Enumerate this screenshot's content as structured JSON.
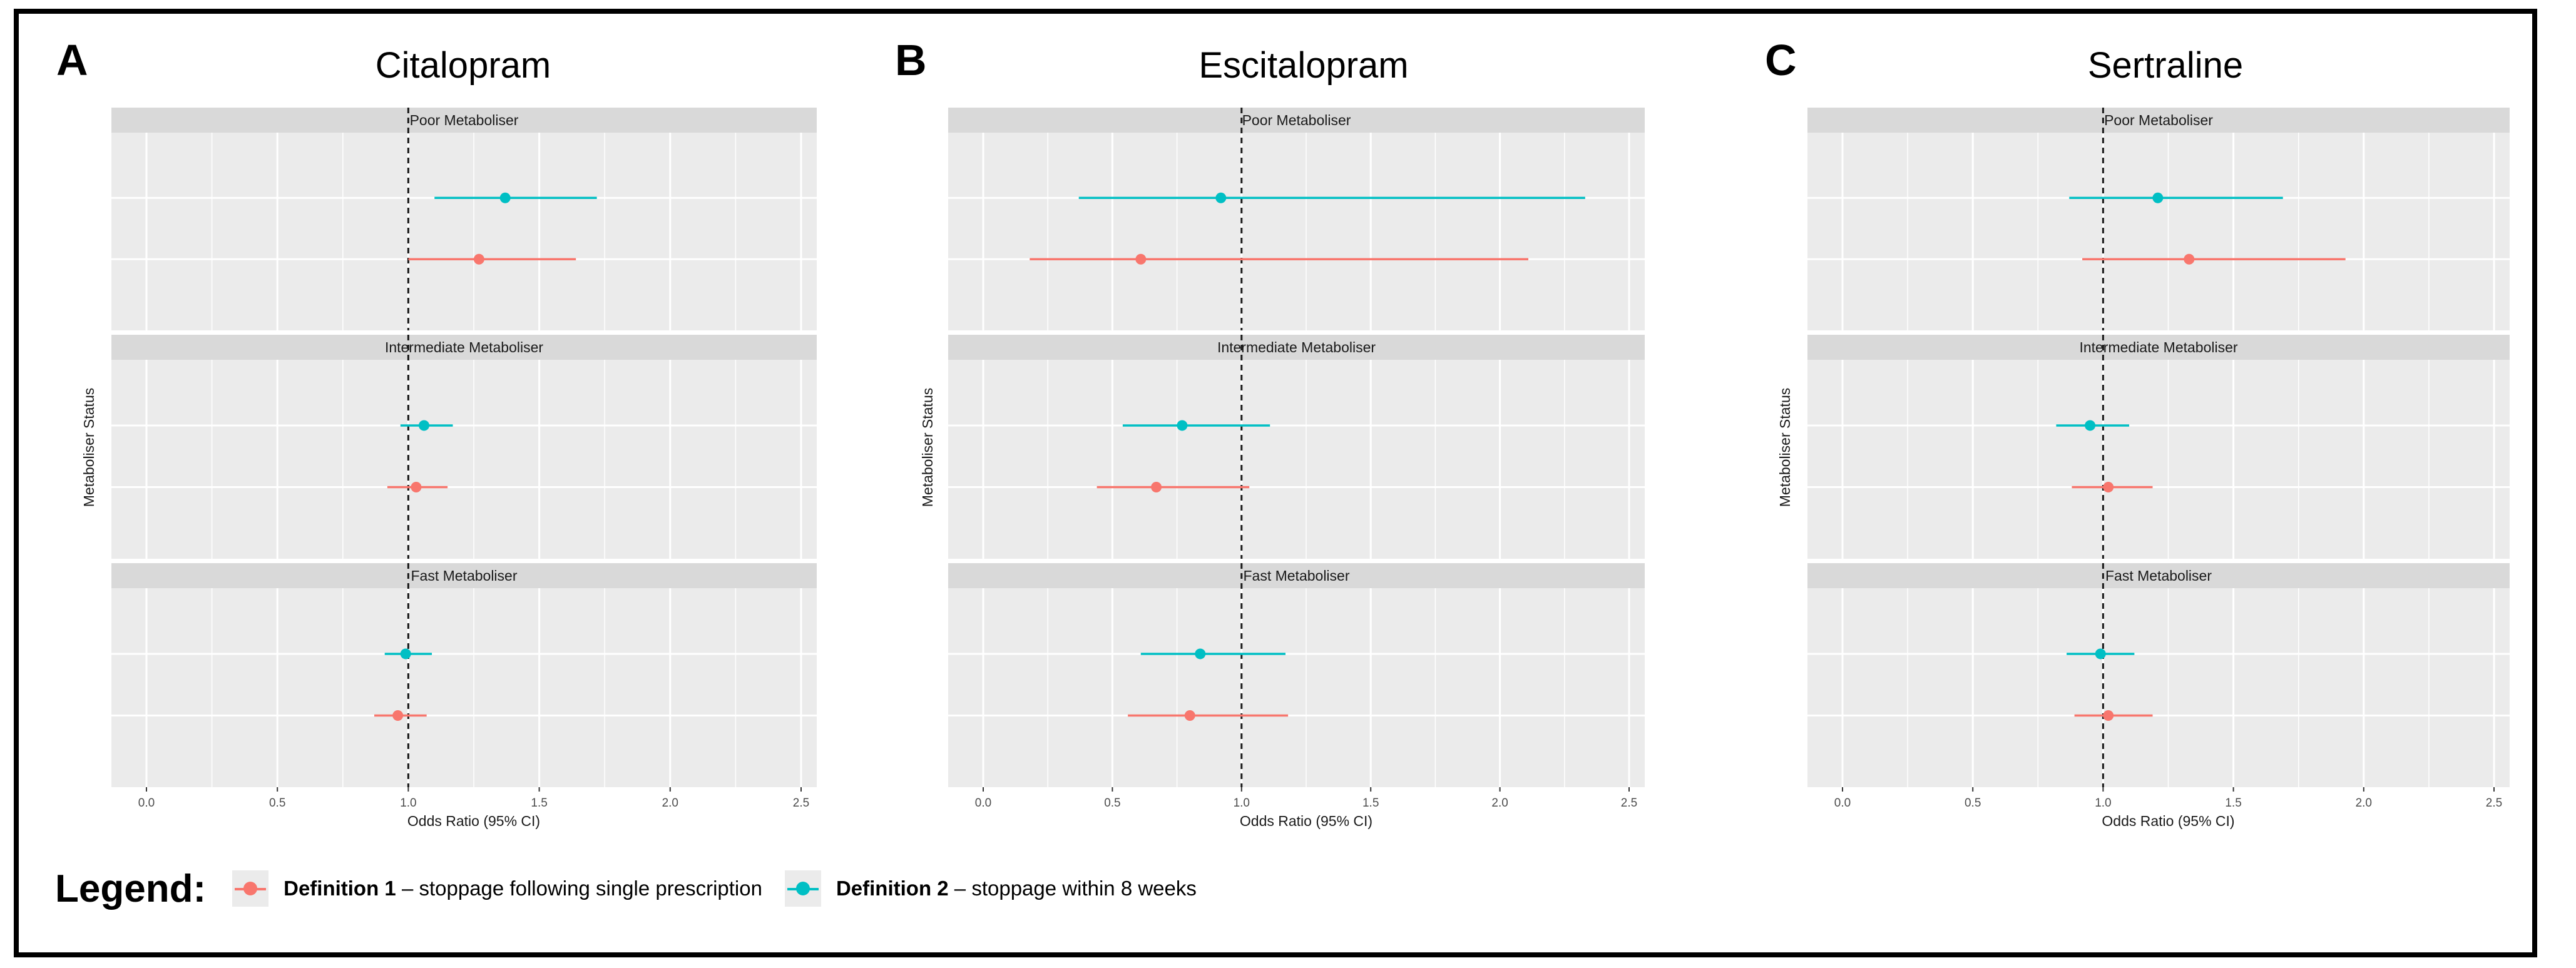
{
  "figure": {
    "legend_title": "Legend:",
    "legend_items": [
      {
        "bold": "Definition 1",
        "rest": " – stoppage following single prescription",
        "color": "#F8766D"
      },
      {
        "bold": "Definition 2",
        "rest": " – stoppage within 8 weeks",
        "color": "#00BFC4"
      }
    ]
  },
  "chart_data": [
    {
      "type": "scatter",
      "letter": "A",
      "title": "Citalopram",
      "xlabel": "Odds Ratio (95% CI)",
      "ylabel": "Metaboliser Status",
      "xlim": [
        0,
        2.5
      ],
      "xticks": [
        "0.0",
        "0.5",
        "1.0",
        "1.5",
        "2.0",
        "2.5"
      ],
      "reference_line": 1.0,
      "facets": [
        {
          "label": "Poor Metaboliser",
          "points": [
            {
              "series": "Definition 2",
              "or": 1.37,
              "lo": 1.1,
              "hi": 1.72
            },
            {
              "series": "Definition 1",
              "or": 1.27,
              "lo": 1.0,
              "hi": 1.64
            }
          ]
        },
        {
          "label": "Intermediate Metaboliser",
          "points": [
            {
              "series": "Definition 2",
              "or": 1.06,
              "lo": 0.97,
              "hi": 1.17
            },
            {
              "series": "Definition 1",
              "or": 1.03,
              "lo": 0.92,
              "hi": 1.15
            }
          ]
        },
        {
          "label": "Fast Metaboliser",
          "points": [
            {
              "series": "Definition 2",
              "or": 0.99,
              "lo": 0.91,
              "hi": 1.09
            },
            {
              "series": "Definition 1",
              "or": 0.96,
              "lo": 0.87,
              "hi": 1.07
            }
          ]
        }
      ]
    },
    {
      "type": "scatter",
      "letter": "B",
      "title": "Escitalopram",
      "xlabel": "Odds Ratio (95% CI)",
      "ylabel": "Metaboliser Status",
      "xlim": [
        0,
        2.5
      ],
      "xticks": [
        "0.0",
        "0.5",
        "1.0",
        "1.5",
        "2.0",
        "2.5"
      ],
      "reference_line": 1.0,
      "facets": [
        {
          "label": "Poor Metaboliser",
          "points": [
            {
              "series": "Definition 2",
              "or": 0.92,
              "lo": 0.37,
              "hi": 2.33
            },
            {
              "series": "Definition 1",
              "or": 0.61,
              "lo": 0.18,
              "hi": 2.11
            }
          ]
        },
        {
          "label": "Intermediate Metaboliser",
          "points": [
            {
              "series": "Definition 2",
              "or": 0.77,
              "lo": 0.54,
              "hi": 1.11
            },
            {
              "series": "Definition 1",
              "or": 0.67,
              "lo": 0.44,
              "hi": 1.03
            }
          ]
        },
        {
          "label": "Fast Metaboliser",
          "points": [
            {
              "series": "Definition 2",
              "or": 0.84,
              "lo": 0.61,
              "hi": 1.17
            },
            {
              "series": "Definition 1",
              "or": 0.8,
              "lo": 0.56,
              "hi": 1.18
            }
          ]
        }
      ]
    },
    {
      "type": "scatter",
      "letter": "C",
      "title": "Sertraline",
      "xlabel": "Odds Ratio (95% CI)",
      "ylabel": "Metaboliser Status",
      "xlim": [
        0,
        2.5
      ],
      "xticks": [
        "0.0",
        "0.5",
        "1.0",
        "1.5",
        "2.0",
        "2.5"
      ],
      "reference_line": 1.0,
      "facets": [
        {
          "label": "Poor Metaboliser",
          "points": [
            {
              "series": "Definition 2",
              "or": 1.21,
              "lo": 0.87,
              "hi": 1.69
            },
            {
              "series": "Definition 1",
              "or": 1.33,
              "lo": 0.92,
              "hi": 1.93
            }
          ]
        },
        {
          "label": "Intermediate Metaboliser",
          "points": [
            {
              "series": "Definition 2",
              "or": 0.95,
              "lo": 0.82,
              "hi": 1.1
            },
            {
              "series": "Definition 1",
              "or": 1.02,
              "lo": 0.88,
              "hi": 1.19
            }
          ]
        },
        {
          "label": "Fast Metaboliser",
          "points": [
            {
              "series": "Definition 2",
              "or": 0.99,
              "lo": 0.86,
              "hi": 1.12
            },
            {
              "series": "Definition 1",
              "or": 1.02,
              "lo": 0.89,
              "hi": 1.19
            }
          ]
        }
      ]
    }
  ],
  "colors": {
    "Definition 1": "#F8766D",
    "Definition 2": "#00BFC4",
    "panel_bg": "#EBEBEB",
    "strip_bg": "#D9D9D9",
    "grid": "#FFFFFF"
  }
}
